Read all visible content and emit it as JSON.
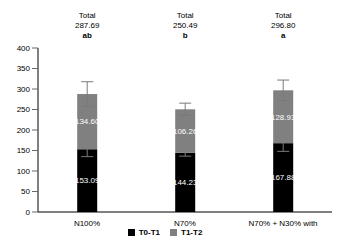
{
  "chart_data": {
    "type": "bar",
    "stacked": true,
    "data_labels": true,
    "legend": "bottom",
    "categories": [
      "N100%",
      "N70%",
      "N70% + N30% with"
    ],
    "ylim": [
      0,
      400
    ],
    "yticks": [
      0,
      50,
      100,
      150,
      200,
      250,
      300,
      350,
      400
    ],
    "series": [
      {
        "name": "T0-T1",
        "color": "#000000",
        "values": [
          153.09,
          144.23,
          167.88
        ],
        "errors": [
          18,
          8,
          20
        ]
      },
      {
        "name": "T1-T2",
        "color": "#808080",
        "values": [
          134.6,
          106.26,
          128.93
        ],
        "value_labels": [
          "134.60",
          "106.26",
          "128.93"
        ],
        "errors": [
          30,
          15,
          25
        ]
      }
    ],
    "totals": {
      "label": "Total",
      "values": [
        287.69,
        250.49,
        296.8
      ],
      "value_labels": [
        "287.69",
        "250.49",
        "296.80"
      ],
      "letters": [
        "ab",
        "b",
        "a"
      ]
    }
  }
}
